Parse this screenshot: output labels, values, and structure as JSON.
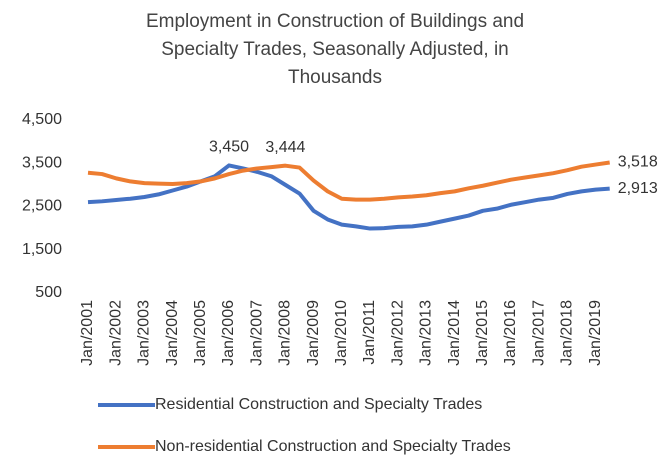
{
  "chart_data": {
    "type": "line",
    "title": "Employment in Construction of Buildings and Specialty Trades,  Seasonally Adjusted, in Thousands",
    "categories": [
      "Jan/2001",
      null,
      "Jan/2002",
      null,
      "Jan/2003",
      null,
      "Jan/2004",
      null,
      "Jan/2005",
      null,
      "Jan/2006",
      null,
      "Jan/2007",
      null,
      "Jan/2008",
      null,
      "Jan/2009",
      null,
      "Jan/2010",
      null,
      "Jan/2011",
      null,
      "Jan/2012",
      null,
      "Jan/2013",
      null,
      "Jan/2014",
      null,
      "Jan/2015",
      null,
      "Jan/2016",
      null,
      "Jan/2017",
      null,
      "Jan/2018",
      null,
      "Jan/2019",
      null
    ],
    "series": [
      {
        "name": "Residential Construction and Specialty Trades",
        "color": "#4472c4",
        "values": [
          2600,
          2620,
          2650,
          2680,
          2720,
          2780,
          2870,
          2960,
          3080,
          3200,
          3450,
          3380,
          3300,
          3200,
          3000,
          2800,
          2400,
          2200,
          2080,
          2040,
          1990,
          2000,
          2030,
          2040,
          2080,
          2150,
          2220,
          2290,
          2400,
          2450,
          2540,
          2600,
          2660,
          2700,
          2790,
          2850,
          2890,
          2913
        ],
        "value_labels": [
          null,
          null,
          null,
          null,
          null,
          null,
          null,
          null,
          null,
          null,
          "3,450",
          null,
          null,
          null,
          null,
          null,
          null,
          null,
          null,
          null,
          null,
          null,
          null,
          null,
          null,
          null,
          null,
          null,
          null,
          null,
          null,
          null,
          null,
          null,
          null,
          null,
          null,
          "2,913"
        ]
      },
      {
        "name": "Non-residential Construction and Specialty Trades",
        "color": "#ed7d31",
        "values": [
          3280,
          3250,
          3150,
          3080,
          3040,
          3030,
          3020,
          3040,
          3080,
          3150,
          3250,
          3330,
          3380,
          3410,
          3444,
          3400,
          3100,
          2850,
          2680,
          2660,
          2660,
          2680,
          2710,
          2730,
          2760,
          2810,
          2850,
          2920,
          2980,
          3050,
          3120,
          3170,
          3220,
          3270,
          3340,
          3420,
          3470,
          3518
        ],
        "value_labels": [
          null,
          null,
          null,
          null,
          null,
          null,
          null,
          null,
          null,
          null,
          null,
          null,
          null,
          null,
          "3,444",
          null,
          null,
          null,
          null,
          null,
          null,
          null,
          null,
          null,
          null,
          null,
          null,
          null,
          null,
          null,
          null,
          null,
          null,
          null,
          null,
          null,
          null,
          "3,518"
        ]
      }
    ],
    "ylim": [
      500,
      4500
    ],
    "yticks": [
      {
        "value": 500,
        "label": "500"
      },
      {
        "value": 1500,
        "label": "1,500"
      },
      {
        "value": 2500,
        "label": "2,500"
      },
      {
        "value": 3500,
        "label": "3,500"
      },
      {
        "value": 4500,
        "label": "4,500"
      }
    ],
    "grid": false
  }
}
